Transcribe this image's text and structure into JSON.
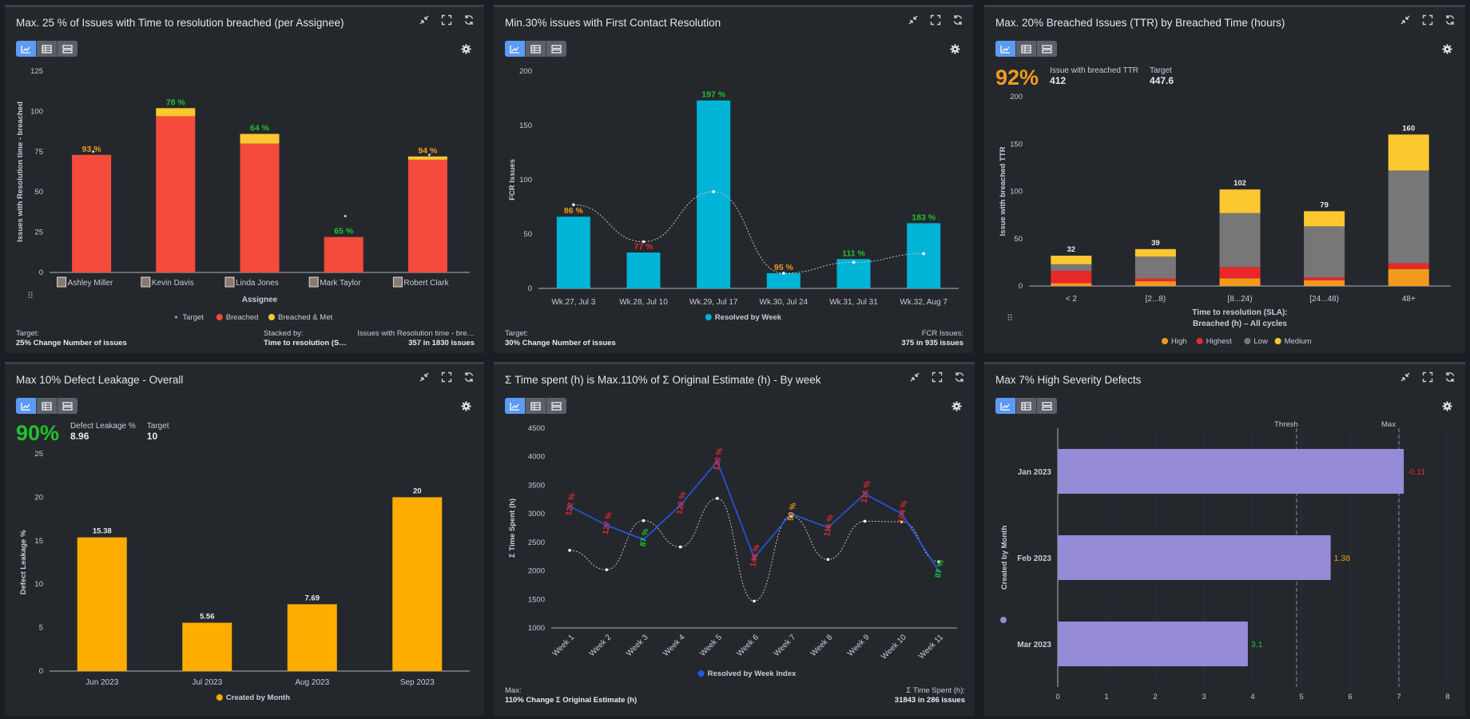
{
  "colors": {
    "breached": "#f44b3d",
    "met": "#fdc82f",
    "cyan": "#00b4d8",
    "green": "#22c02e",
    "orange": "#f39a1c",
    "red": "#e8282b",
    "blue": "#2456e8",
    "amber": "#ffac00",
    "lavender": "#968bd6",
    "grey": "#777777"
  },
  "p1": {
    "title": "Max. 25 % of Issues with Time to resolution breached (per Assignee)",
    "foot_left_label": "Target:",
    "foot_left_value": "25% Change Number of issues",
    "foot_mid_label": "Stacked by:",
    "foot_mid_value": "Time to resolution (S…",
    "foot_right_label": "Issues with Resolution time - bre…",
    "foot_right_value": "357 in 1830 issues",
    "chart_data": {
      "type": "bar",
      "stacked": true,
      "title": "Max. 25 % of Issues with Time to resolution breached (per Assignee)",
      "categories": [
        "Ashley Miller",
        "Kevin Davis",
        "Linda Jones",
        "Mark Taylor",
        "Robert Clark"
      ],
      "series": [
        {
          "name": "Breached",
          "values": [
            73,
            97,
            80,
            22,
            70
          ]
        },
        {
          "name": "Breached & Met",
          "values": [
            0,
            5,
            6,
            0,
            2
          ]
        }
      ],
      "target": {
        "name": "Target",
        "values": [
          75,
          null,
          null,
          35,
          73
        ]
      },
      "labels": [
        "93 %",
        "78 %",
        "64 %",
        "65 %",
        "94 %"
      ],
      "xlabel": "Assignee",
      "ylabel": "Issues with Resolution time - breached",
      "ylim": [
        0,
        125
      ],
      "yticks": [
        0,
        25,
        50,
        75,
        100,
        125
      ],
      "legend": [
        "Target",
        "Breached",
        "Breached & Met"
      ]
    }
  },
  "p2": {
    "title": "Min.30% issues with First Contact Resolution",
    "foot_left_label": "Target:",
    "foot_left_value": "30% Change Number of issues",
    "foot_right_label": "FCR Issues:",
    "foot_right_value": "375 in 935 issues",
    "chart_data": {
      "type": "bar",
      "title": "Min.30% issues with First Contact Resolution",
      "categories": [
        "Wk.27, Jul 3",
        "Wk.28, Jul 10",
        "Wk.29, Jul 17",
        "Wk.30, Jul 24",
        "Wk.31, Jul 31",
        "Wk.32, Aug 7"
      ],
      "values": [
        66,
        33,
        173,
        14,
        27,
        60
      ],
      "target": [
        77,
        43,
        89,
        14,
        24,
        32
      ],
      "labels": [
        "86 %",
        "77 %",
        "197 %",
        "95 %",
        "111 %",
        "183 %"
      ],
      "xlabel": "",
      "ylabel": "FCR Issues",
      "ylim": [
        0,
        200
      ],
      "yticks": [
        0,
        50,
        100,
        150,
        200
      ],
      "legend": [
        "Resolved by Week"
      ]
    }
  },
  "p3": {
    "title": "Max. 20% Breached Issues (TTR) by Breached Time (hours)",
    "kpi": {
      "big": "92%",
      "label1": "Issue with breached TTR",
      "value1": "412",
      "label2": "Target",
      "value2": "447.6"
    },
    "chart_data": {
      "type": "bar",
      "stacked": true,
      "title": "Max. 20% Breached Issues (TTR) by Breached Time (hours)",
      "categories": [
        "< 2",
        "[2...8)",
        "[8...24)",
        "[24...48)",
        "48+"
      ],
      "series": [
        {
          "name": "High",
          "values": [
            3,
            5,
            8,
            6,
            18
          ]
        },
        {
          "name": "Highest",
          "values": [
            13,
            3,
            12,
            3,
            6
          ]
        },
        {
          "name": "Low",
          "values": [
            7,
            23,
            57,
            54,
            98
          ]
        },
        {
          "name": "Medium",
          "values": [
            9,
            8,
            25,
            16,
            38
          ]
        }
      ],
      "totals": [
        "32",
        "39",
        "102",
        "79",
        "160"
      ],
      "xlabel": "Time to resolution (SLA):",
      "xlabel2": "Breached (h) – All cycles",
      "ylabel": "Issue with breached TTR",
      "ylim": [
        0,
        200
      ],
      "yticks": [
        0,
        50,
        100,
        150,
        200
      ],
      "legend": [
        "High",
        "Highest",
        "Low",
        "Medium"
      ]
    }
  },
  "p4": {
    "title": "Max 10% Defect Leakage - Overall",
    "kpi": {
      "big": "90%",
      "label1": "Defect Leakage %",
      "value1": "8.96",
      "label2": "Target",
      "value2": "10"
    },
    "chart_data": {
      "type": "bar",
      "title": "Max 10% Defect Leakage - Overall",
      "categories": [
        "Jun 2023",
        "Jul 2023",
        "Aug 2023",
        "Sep 2023"
      ],
      "values": [
        15.38,
        5.56,
        7.69,
        20
      ],
      "labels": [
        "15.38",
        "5.56",
        "7.69",
        "20"
      ],
      "xlabel": "",
      "ylabel": "Defect Leakage %",
      "ylim": [
        0,
        25
      ],
      "yticks": [
        0,
        5,
        10,
        15,
        20,
        25
      ],
      "legend": [
        "Created by Month"
      ]
    }
  },
  "p5": {
    "title": "Σ Time spent (h) is Max.110% of Σ Original Estimate (h) - By week",
    "foot_left_label": "Max:",
    "foot_left_value": "110% Change Σ Original Estimate (h)",
    "foot_right_label": "Σ Time Spent (h):",
    "foot_right_value": "31843 in 286 issues",
    "chart_data": {
      "type": "line",
      "title": "Σ Time spent (h) is Max.110% of Σ Original Estimate (h) - By week",
      "categories": [
        "Week 1",
        "Week 2",
        "Week 3",
        "Week 4",
        "Week 5",
        "Week 6",
        "Week 7",
        "Week 8",
        "Week 9",
        "Week 10",
        "Week 11"
      ],
      "series": [
        {
          "name": "Resolved by Week Index",
          "values": [
            3130,
            2800,
            2550,
            3150,
            3920,
            2230,
            3000,
            2760,
            3350,
            3000,
            2000
          ]
        },
        {
          "name": "Max",
          "values": [
            2360,
            2020,
            2880,
            2420,
            3270,
            1470,
            2960,
            2200,
            2870,
            2860,
            2160
          ]
        }
      ],
      "labels": [
        "122 %",
        "127 %",
        "87 %",
        "122 %",
        "120 %",
        "146 %",
        "90 %",
        "116 %",
        "116 %",
        "104 %",
        "87 %"
      ],
      "xlabel": "",
      "ylabel": "Σ Time Spent (h)",
      "ylim": [
        1000,
        4500
      ],
      "yticks": [
        1000,
        1500,
        2000,
        2500,
        3000,
        3500,
        4000,
        4500
      ],
      "legend": [
        "Resolved by Week Index"
      ]
    }
  },
  "p6": {
    "title": "Max 7% High Severity Defects",
    "chart_data": {
      "type": "bar",
      "orientation": "horizontal",
      "title": "Max 7% High Severity Defects",
      "categories": [
        "Jan 2023",
        "Feb 2023",
        "Mar 2023"
      ],
      "values": [
        7.1,
        5.6,
        3.9
      ],
      "labels": [
        "-0.11",
        "1.38",
        "3.1"
      ],
      "lines": [
        {
          "name": "Thresh",
          "value": 4.9
        },
        {
          "name": "Max",
          "value": 7
        }
      ],
      "xlabel": "",
      "ylabel": "Created by Month",
      "xlim": [
        0,
        8
      ],
      "xticks": [
        0,
        1,
        2,
        3,
        4,
        5,
        6,
        7,
        8
      ],
      "legend": [
        "Created by Month"
      ]
    }
  }
}
